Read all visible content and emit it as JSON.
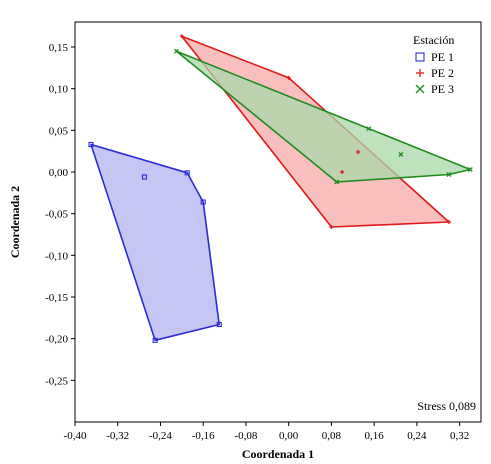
{
  "chart_data": {
    "type": "scatter",
    "xlabel": "Coordenada 1",
    "ylabel": "Coordenada 2",
    "xlim": [
      -0.4,
      0.36
    ],
    "ylim": [
      -0.3,
      0.18
    ],
    "x_ticks": [
      -0.4,
      -0.32,
      -0.24,
      -0.16,
      -0.08,
      0.0,
      0.08,
      0.16,
      0.24,
      0.32
    ],
    "x_tick_labels": [
      "-0,40",
      "-0,32",
      "-0,24",
      "-0,16",
      "-0,08",
      "0,00",
      "0,08",
      "0,16",
      "0,24",
      "0,32"
    ],
    "y_ticks": [
      0.15,
      0.1,
      0.05,
      0.0,
      -0.05,
      -0.1,
      -0.15,
      -0.2,
      -0.25
    ],
    "y_tick_labels": [
      "0,15",
      "0,10",
      "0,05",
      "0,00",
      "-0,05",
      "-0,10",
      "-0,15",
      "-0,20",
      "-0,25"
    ],
    "legend": {
      "title": "Estación",
      "placement": "top-right"
    },
    "annotation": "Stress 0,089",
    "series": [
      {
        "name": "PE 1",
        "marker": "square",
        "color": "#2b2bd6",
        "fill": "#b3b3f0",
        "points": [
          [
            -0.37,
            0.033
          ],
          [
            -0.27,
            -0.006
          ],
          [
            -0.19,
            -0.001
          ],
          [
            -0.16,
            -0.036
          ],
          [
            -0.13,
            -0.183
          ],
          [
            -0.25,
            -0.202
          ]
        ],
        "hull": [
          [
            -0.37,
            0.033
          ],
          [
            -0.19,
            -0.001
          ],
          [
            -0.16,
            -0.036
          ],
          [
            -0.13,
            -0.183
          ],
          [
            -0.25,
            -0.202
          ]
        ]
      },
      {
        "name": "PE 2",
        "marker": "plus",
        "color": "#e01919",
        "fill": "#f7a8a8",
        "points": [
          [
            -0.2,
            0.163
          ],
          [
            0.0,
            0.113
          ],
          [
            0.13,
            0.024
          ],
          [
            0.1,
            0.0
          ],
          [
            0.08,
            -0.066
          ],
          [
            0.3,
            -0.06
          ]
        ],
        "hull": [
          [
            -0.2,
            0.163
          ],
          [
            0.0,
            0.113
          ],
          [
            0.3,
            -0.06
          ],
          [
            0.08,
            -0.066
          ]
        ]
      },
      {
        "name": "PE 3",
        "marker": "x",
        "color": "#1e8c1e",
        "fill": "#a8d8a8",
        "points": [
          [
            -0.21,
            0.145
          ],
          [
            0.15,
            0.052
          ],
          [
            0.21,
            0.021
          ],
          [
            0.34,
            0.003
          ],
          [
            0.3,
            -0.003
          ],
          [
            0.09,
            -0.012
          ]
        ],
        "hull": [
          [
            -0.21,
            0.145
          ],
          [
            0.34,
            0.003
          ],
          [
            0.3,
            -0.003
          ],
          [
            0.09,
            -0.012
          ]
        ]
      }
    ]
  }
}
